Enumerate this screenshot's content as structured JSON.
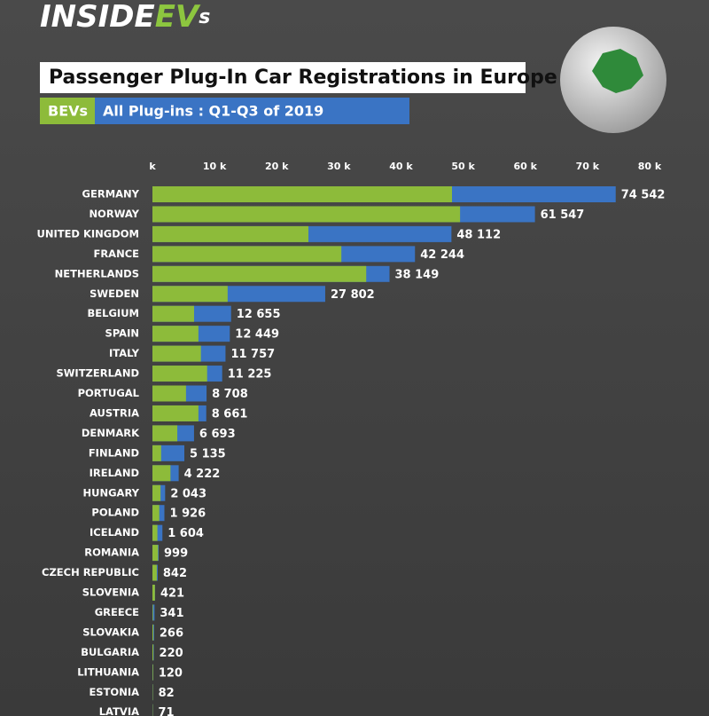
{
  "logo": {
    "main": "INSIDE",
    "accent": "EV",
    "suffix": "s"
  },
  "chart_data": {
    "type": "overlap-hbar",
    "title": "Passenger Plug-In Car Registrations in Europe",
    "categories": [
      "GERMANY",
      "NORWAY",
      "UNITED KINGDOM",
      "FRANCE",
      "NETHERLANDS",
      "SWEDEN",
      "BELGIUM",
      "SPAIN",
      "ITALY",
      "SWITZERLAND",
      "PORTUGAL",
      "AUSTRIA",
      "DENMARK",
      "FINLAND",
      "IRELAND",
      "HUNGARY",
      "POLAND",
      "ICELAND",
      "ROMANIA",
      "CZECH REPUBLIC",
      "SLOVENIA",
      "GREECE",
      "SLOVAKIA",
      "BULGARIA",
      "LITHUANIA",
      "ESTONIA",
      "LATVIA"
    ],
    "series": [
      {
        "name": "BEVs",
        "color": "#8dbb3a",
        "values": [
          48200,
          49500,
          25100,
          30400,
          34400,
          12100,
          6700,
          7400,
          7800,
          8800,
          5400,
          7400,
          4000,
          1400,
          2900,
          1300,
          1100,
          800,
          900,
          700,
          400,
          100,
          150,
          150,
          100,
          60,
          50
        ]
      },
      {
        "name": "All Plug-ins : Q1-Q3 of 2019",
        "color": "#3a74c4",
        "values": [
          74542,
          61547,
          48112,
          42244,
          38149,
          27802,
          12655,
          12449,
          11757,
          11225,
          8708,
          8661,
          6693,
          5135,
          4222,
          2043,
          1926,
          1604,
          999,
          842,
          421,
          341,
          266,
          220,
          120,
          82,
          71
        ],
        "value_labels": [
          "74 542",
          "61 547",
          "48 112",
          "42 244",
          "38 149",
          "27 802",
          "12 655",
          "12 449",
          "11 757",
          "11 225",
          "8 708",
          "8 661",
          "6 693",
          "5 135",
          "4 222",
          "2 043",
          "1 926",
          "1 604",
          "999",
          "842",
          "421",
          "341",
          "266",
          "220",
          "120",
          "82",
          "71"
        ]
      }
    ],
    "xlim": [
      0,
      80000
    ],
    "xticks": [
      {
        "value": 0,
        "label": "k"
      },
      {
        "value": 10000,
        "label": "10 k"
      },
      {
        "value": 20000,
        "label": "20 k"
      },
      {
        "value": 30000,
        "label": "30 k"
      },
      {
        "value": 40000,
        "label": "40 k"
      },
      {
        "value": 50000,
        "label": "50 k"
      },
      {
        "value": 60000,
        "label": "60 k"
      },
      {
        "value": 70000,
        "label": "70 k"
      },
      {
        "value": 80000,
        "label": "80 k"
      }
    ],
    "grid": false
  }
}
